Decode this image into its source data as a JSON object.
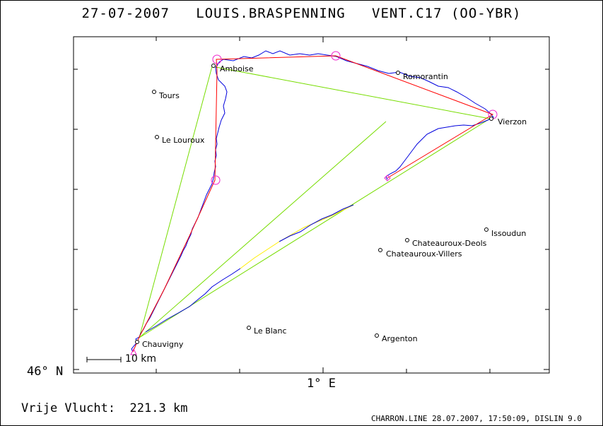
{
  "title": {
    "date": "27-07-2007",
    "pilot": "LOUIS.BRASPENNING",
    "glider": "VENT.C17 (OO-YBR)"
  },
  "axes": {
    "x_label": "1° E",
    "y_label": "46° N"
  },
  "scale": {
    "label": "10 km"
  },
  "distance": {
    "label": "Vrije Vlucht:",
    "value": "221.3 km"
  },
  "footer": "CHARRON.LINE 28.07.2007, 17:50:09, DISLIN 9.0",
  "towns": [
    {
      "name": "Amboise"
    },
    {
      "name": "Tours"
    },
    {
      "name": "Le Louroux"
    },
    {
      "name": "Romorantin"
    },
    {
      "name": "Vierzon"
    },
    {
      "name": "Issoudun"
    },
    {
      "name": "Chateauroux-Deols"
    },
    {
      "name": "Chateauroux-Villers"
    },
    {
      "name": "Le Blanc"
    },
    {
      "name": "Argenton"
    },
    {
      "name": "Chauvigny"
    }
  ],
  "colors": {
    "track": "#0000dd",
    "task": "#ff0000",
    "triangle": "#77dd00",
    "gap": "#ffee00",
    "turnpoint": "#ee22cc"
  }
}
